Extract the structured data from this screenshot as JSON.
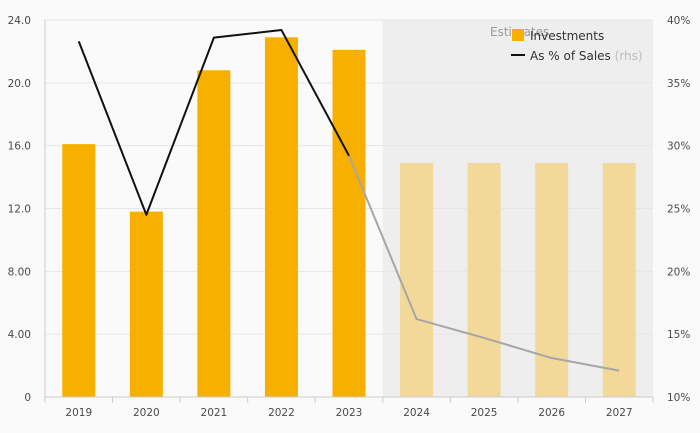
{
  "colors": {
    "bar_actual": "#f8b000",
    "bar_estimate": "#f2d99a",
    "line_actual": "#111111",
    "line_estimate": "#a6a6a6",
    "estimate_band": "#eeeeee",
    "grid": "#e6e6e6",
    "axis": "#cccccc"
  },
  "legend": {
    "investments_label": "Investments",
    "ratio_label": "As % of Sales",
    "ratio_suffix": "(rhs)"
  },
  "estimates_label": "Estimates",
  "chart_data": {
    "type": "bar",
    "categories": [
      "2019",
      "2020",
      "2021",
      "2022",
      "2023",
      "2024",
      "2025",
      "2026",
      "2027"
    ],
    "estimate_categories": [
      "2024",
      "2025",
      "2026",
      "2027"
    ],
    "series": [
      {
        "name": "Investments",
        "axis": "left",
        "type": "bar",
        "values": [
          16.1,
          11.8,
          20.8,
          22.9,
          22.1,
          14.9,
          14.9,
          14.9,
          14.9
        ]
      },
      {
        "name": "As % of Sales",
        "axis": "right",
        "type": "line",
        "values": [
          38.3,
          24.5,
          38.6,
          39.2,
          29.2,
          16.2,
          14.7,
          13.1,
          12.1
        ]
      }
    ],
    "y_left": {
      "ylim": [
        0,
        24
      ],
      "ticks": [
        0,
        4,
        8,
        12,
        16,
        20,
        24
      ],
      "tick_labels": [
        "0",
        "4.00",
        "8.00",
        "12.0",
        "16.0",
        "20.0",
        "24.0"
      ]
    },
    "y_right": {
      "ylim": [
        10,
        40
      ],
      "ticks": [
        10,
        15,
        20,
        25,
        30,
        35,
        40
      ],
      "tick_labels": [
        "10%",
        "15%",
        "20%",
        "25%",
        "30%",
        "35%",
        "40%"
      ]
    },
    "grid": true,
    "legend_position": "top-right"
  }
}
